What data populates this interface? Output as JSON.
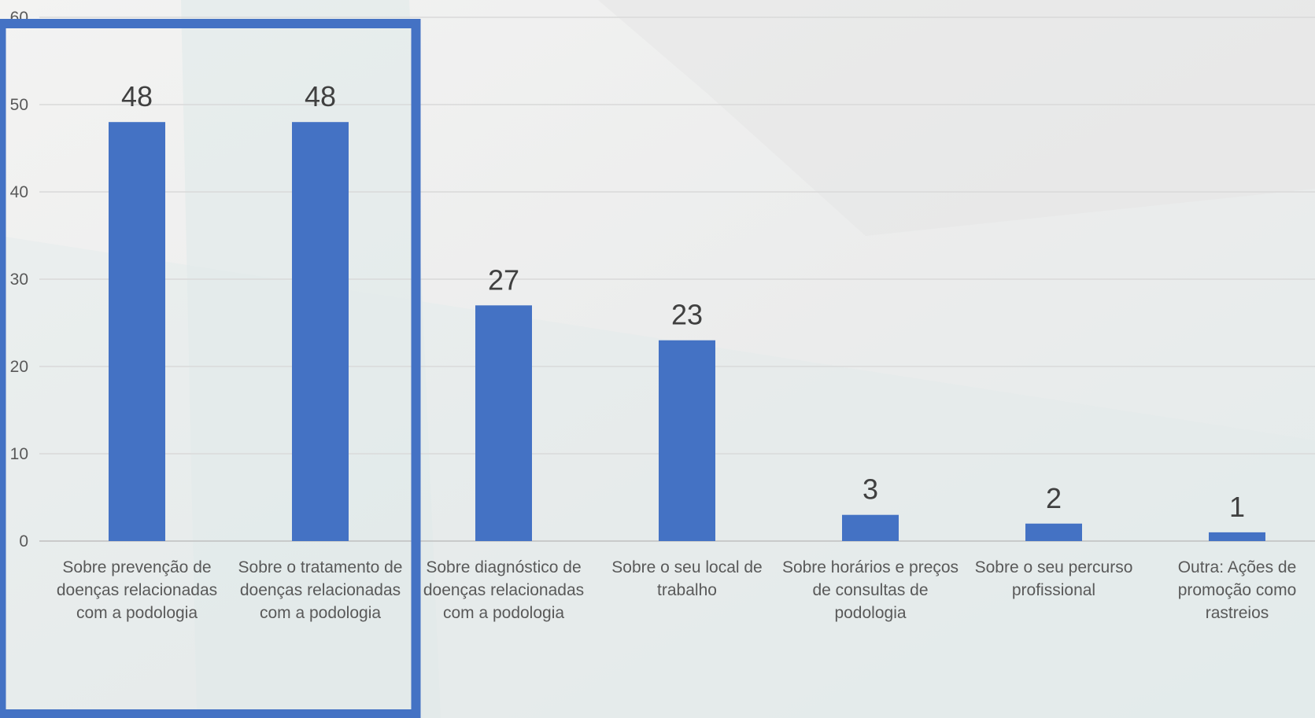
{
  "colors": {
    "bar": "#4472c4",
    "highlight_box": "#4472c4",
    "gridline": "#d9d9d9",
    "tick_text": "#595959",
    "data_label_text": "#404040"
  },
  "chart_data": {
    "type": "bar",
    "title": "",
    "xlabel": "",
    "ylabel": "",
    "ylim": [
      0,
      60
    ],
    "yticks": [
      0,
      10,
      20,
      30,
      40,
      50,
      60
    ],
    "grid": true,
    "legend": "none",
    "categories": [
      "Sobre prevenção de doenças relacionadas com a podologia",
      "Sobre o tratamento de doenças relacionadas com a podologia",
      "Sobre diagnóstico de doenças relacionadas com a podologia",
      "Sobre o seu local de trabalho",
      "Sobre horários e preços de consultas de podologia",
      "Sobre o seu percurso profissional",
      "Outra: Ações de promoção como rastreios"
    ],
    "category_label_lines": [
      [
        "Sobre prevenção de",
        "doenças relacionadas",
        "com a podologia"
      ],
      [
        "Sobre o tratamento de",
        "doenças relacionadas",
        "com a podologia"
      ],
      [
        "Sobre diagnóstico de",
        "doenças relacionadas",
        "com a podologia"
      ],
      [
        "Sobre o seu local de",
        "trabalho"
      ],
      [
        "Sobre horários e preços",
        "de consultas de",
        "podologia"
      ],
      [
        "Sobre o seu percurso",
        "profissional"
      ],
      [
        "Outra: Ações de",
        "promoção como",
        "rastreios"
      ]
    ],
    "values": [
      48,
      48,
      27,
      23,
      3,
      2,
      1
    ],
    "highlighted_categories": [
      0,
      1
    ]
  }
}
